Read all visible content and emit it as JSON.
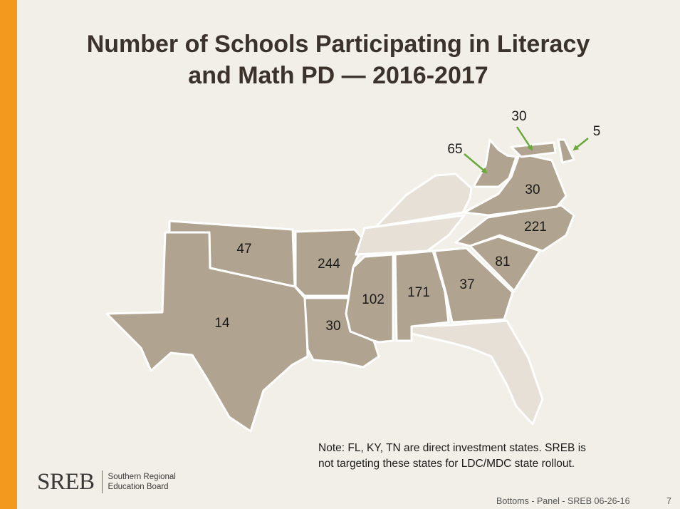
{
  "slide": {
    "title_line1": "Number of Schools Participating in Literacy",
    "title_line2": "and Math PD — 2016-2017"
  },
  "map": {
    "participating_color": "#b0a390",
    "non_participating_color": "#e6e0d7",
    "border_color": "#ffffff",
    "callout_arrow_color": "#6aaa3a",
    "states": [
      {
        "id": "OK",
        "participating": true,
        "label": "47"
      },
      {
        "id": "TX",
        "participating": true,
        "label": "14"
      },
      {
        "id": "AR",
        "participating": true,
        "label": "244"
      },
      {
        "id": "LA",
        "participating": true,
        "label": "30"
      },
      {
        "id": "MS",
        "participating": true,
        "label": "102"
      },
      {
        "id": "AL",
        "participating": true,
        "label": "171"
      },
      {
        "id": "GA",
        "participating": true,
        "label": "37"
      },
      {
        "id": "SC",
        "participating": true,
        "label": "81"
      },
      {
        "id": "NC",
        "participating": true,
        "label": "221"
      },
      {
        "id": "VA",
        "participating": true,
        "label": "30"
      },
      {
        "id": "WV",
        "participating": true,
        "label": "65"
      },
      {
        "id": "MD",
        "participating": true,
        "label": "30"
      },
      {
        "id": "DE",
        "participating": true,
        "label": "5"
      },
      {
        "id": "KY",
        "participating": false,
        "label": ""
      },
      {
        "id": "TN",
        "participating": false,
        "label": ""
      },
      {
        "id": "FL",
        "participating": false,
        "label": ""
      }
    ]
  },
  "note": {
    "line1": "Note:  FL, KY, TN are direct investment states.  SREB is",
    "line2": "not targeting these states for LDC/MDC state rollout."
  },
  "logo": {
    "wordmark": "SREB",
    "line1": "Southern Regional",
    "line2": "Education Board"
  },
  "footer": {
    "text": "Bottoms - Panel - SREB 06-26-16",
    "page": "7"
  },
  "colors": {
    "accent_bar": "#f39a1e",
    "background": "#f1efe7",
    "title": "#3a322b"
  }
}
